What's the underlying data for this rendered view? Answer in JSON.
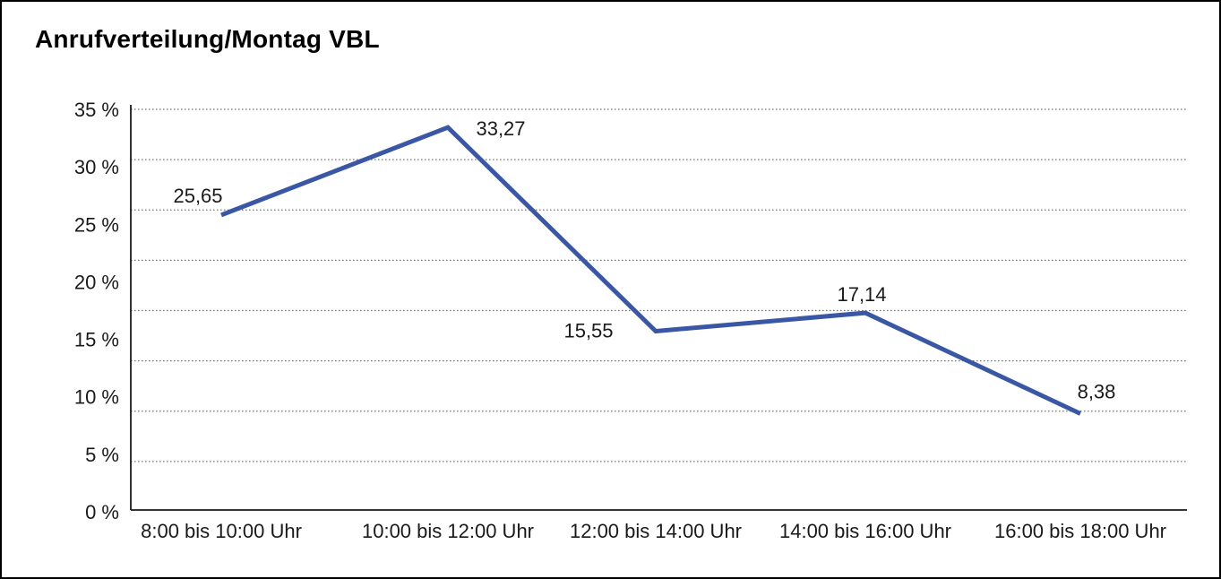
{
  "page": {
    "title": "Anrufverteilung/Montag VBL",
    "background_color": "#ffffff",
    "border_color": "#000000"
  },
  "chart_data": {
    "type": "line",
    "title": "Anrufverteilung/Montag VBL",
    "categories": [
      "8:00 bis 10:00 Uhr",
      "10:00 bis 12:00 Uhr",
      "12:00 bis 14:00 Uhr",
      "14:00 bis 16:00 Uhr",
      "16:00 bis 18:00 Uhr"
    ],
    "values": [
      25.65,
      33.27,
      15.55,
      17.14,
      8.38
    ],
    "value_labels": [
      "25,65",
      "33,27",
      "15,55",
      "17,14",
      "8,38"
    ],
    "xlabel": "",
    "ylabel": "",
    "ylim": [
      0,
      35
    ],
    "y_tick_step": 5,
    "y_tick_labels_top_to_bottom": [
      "35 %",
      "30 %",
      "25 %",
      "20 %",
      "15 %",
      "10 %",
      "5 %",
      "0 %"
    ],
    "grid": "horizontal-dotted",
    "legend_position": "none",
    "line_color": "#3a57a5",
    "gridline_color": "#7a7a7a",
    "axis_color": "#1a1a1a",
    "text_color": "#1a1a1a"
  }
}
